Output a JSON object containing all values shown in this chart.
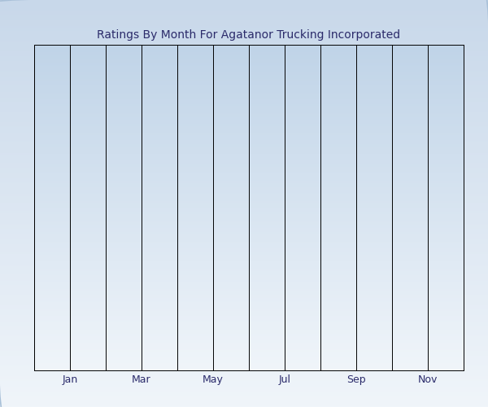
{
  "title": "Ratings By Month For Agatanor Trucking Incorporated",
  "title_fontsize": 10,
  "title_color": "#2b2b6b",
  "x_tick_labels": [
    "Jan",
    "Mar",
    "May",
    "Jul",
    "Sep",
    "Nov"
  ],
  "x_tick_positions": [
    1,
    3,
    5,
    7,
    9,
    11
  ],
  "xlim": [
    0,
    12
  ],
  "ylim": [
    0,
    1
  ],
  "grid_color": "#000000",
  "grid_linewidth": 0.7,
  "outer_bg_top": "#c8d8ea",
  "outer_bg_bottom": "#e8eff7",
  "plot_bg_top": "#c0d4e8",
  "plot_bg_bottom": "#f0f5fa",
  "tick_fontsize": 9,
  "tick_color": "#2b2b6b"
}
